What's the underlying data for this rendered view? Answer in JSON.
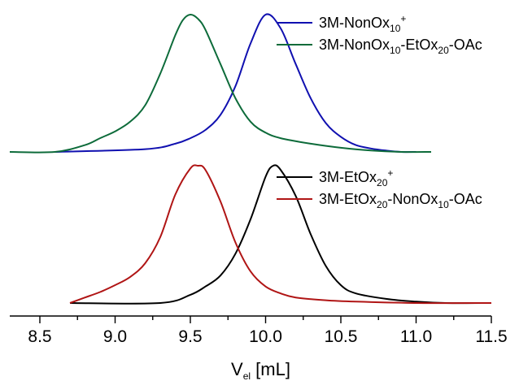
{
  "chart_data": {
    "type": "line",
    "xlabel": "V",
    "xlabel_sub": "el",
    "xlabel_unit": " [mL]",
    "xlim": [
      8.3,
      11.5
    ],
    "x_ticks": [
      "8.5",
      "9.0",
      "9.5",
      "10.0",
      "10.5",
      "11.0",
      "11.5"
    ],
    "y_axis_visible": false,
    "grid": false,
    "legend_placement": "top-right of each panel",
    "panels": [
      {
        "series": [
          {
            "name": "3M-NonOx10+",
            "legend_parts": [
              {
                "t": "3M-NonOx",
                "s": "n"
              },
              {
                "t": "10",
                "s": "sub"
              },
              {
                "t": "+",
                "s": "sup"
              }
            ],
            "color": "#1010b0",
            "x": [
              8.6,
              9.2,
              9.4,
              9.5,
              9.6,
              9.7,
              9.8,
              9.9,
              10.0,
              10.1,
              10.2,
              10.3,
              10.4,
              10.5,
              10.6,
              10.7,
              10.8,
              10.9,
              11.0
            ],
            "y": [
              0.0,
              0.02,
              0.06,
              0.1,
              0.16,
              0.27,
              0.48,
              0.79,
              1.0,
              0.9,
              0.64,
              0.39,
              0.21,
              0.11,
              0.05,
              0.025,
              0.01,
              0.0,
              0.0
            ]
          },
          {
            "name": "3M-NonOx10-EtOx20-OAc",
            "legend_parts": [
              {
                "t": "3M-NonOx",
                "s": "n"
              },
              {
                "t": "10",
                "s": "sub"
              },
              {
                "t": "-EtOx",
                "s": "n"
              },
              {
                "t": "20",
                "s": "sub"
              },
              {
                "t": "-OAc",
                "s": "n"
              }
            ],
            "color": "#0d6b3a",
            "x": [
              8.3,
              8.6,
              8.8,
              8.9,
              9.0,
              9.1,
              9.2,
              9.3,
              9.4,
              9.45,
              9.5,
              9.55,
              9.6,
              9.7,
              9.8,
              9.9,
              10.0,
              10.1,
              10.3,
              10.5,
              10.7,
              10.9,
              11.1
            ],
            "y": [
              0.0,
              0.0,
              0.05,
              0.1,
              0.15,
              0.22,
              0.34,
              0.57,
              0.85,
              0.96,
              1.0,
              0.97,
              0.89,
              0.64,
              0.39,
              0.22,
              0.14,
              0.1,
              0.06,
              0.03,
              0.01,
              0.0,
              0.0
            ]
          }
        ]
      },
      {
        "series": [
          {
            "name": "3M-EtOx20+",
            "legend_parts": [
              {
                "t": "3M-EtOx",
                "s": "n"
              },
              {
                "t": "20",
                "s": "sub"
              },
              {
                "t": "+",
                "s": "sup"
              }
            ],
            "color": "#000000",
            "x": [
              8.7,
              9.3,
              9.5,
              9.6,
              9.7,
              9.8,
              9.9,
              10.0,
              10.05,
              10.1,
              10.2,
              10.3,
              10.4,
              10.5,
              10.6,
              10.8,
              11.0,
              11.2,
              11.5
            ],
            "y": [
              0.0,
              0.0,
              0.06,
              0.12,
              0.2,
              0.36,
              0.61,
              0.92,
              1.0,
              0.97,
              0.78,
              0.5,
              0.27,
              0.13,
              0.07,
              0.03,
              0.01,
              0.0,
              0.0
            ]
          },
          {
            "name": "3M-EtOx20-NonOx10-OAc",
            "legend_parts": [
              {
                "t": "3M-EtOx",
                "s": "n"
              },
              {
                "t": "20",
                "s": "sub"
              },
              {
                "t": "-NonOx",
                "s": "n"
              },
              {
                "t": "10",
                "s": "sub"
              },
              {
                "t": "-OAc",
                "s": "n"
              }
            ],
            "color": "#b01515",
            "x": [
              8.7,
              8.8,
              8.9,
              9.0,
              9.1,
              9.2,
              9.3,
              9.4,
              9.5,
              9.55,
              9.6,
              9.7,
              9.8,
              9.9,
              10.0,
              10.1,
              10.2,
              10.4,
              10.6,
              11.0,
              11.5
            ],
            "y": [
              0.0,
              0.04,
              0.08,
              0.13,
              0.19,
              0.29,
              0.48,
              0.79,
              0.98,
              1.0,
              0.97,
              0.74,
              0.44,
              0.23,
              0.12,
              0.07,
              0.04,
              0.02,
              0.01,
              0.0,
              0.0
            ]
          }
        ]
      }
    ]
  }
}
